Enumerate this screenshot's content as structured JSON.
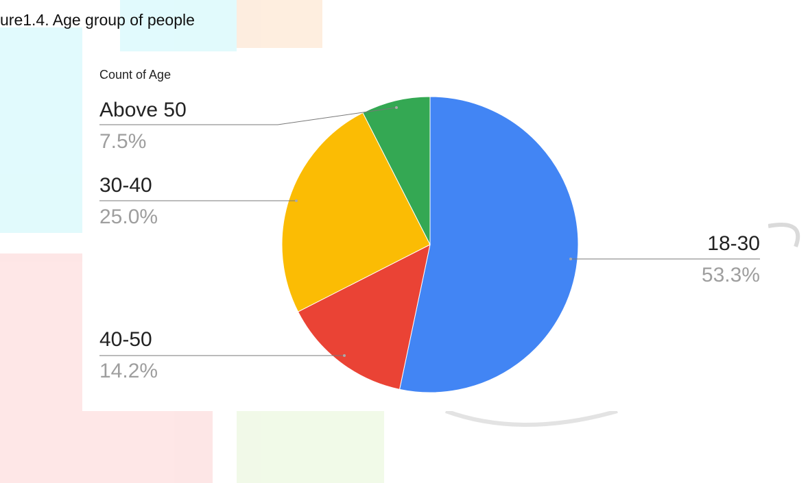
{
  "caption": "ure1.4. Age group of people",
  "chart_data": {
    "type": "pie",
    "title": "Count of Age",
    "categories": [
      "18-30",
      "40-50",
      "30-40",
      "Above 50"
    ],
    "values": [
      53.3,
      14.2,
      25.0,
      7.5
    ],
    "value_labels": [
      "53.3%",
      "14.2%",
      "25.0%",
      "7.5%"
    ],
    "colors": [
      "#4285f4",
      "#ea4335",
      "#fbbc04",
      "#34a853"
    ]
  }
}
